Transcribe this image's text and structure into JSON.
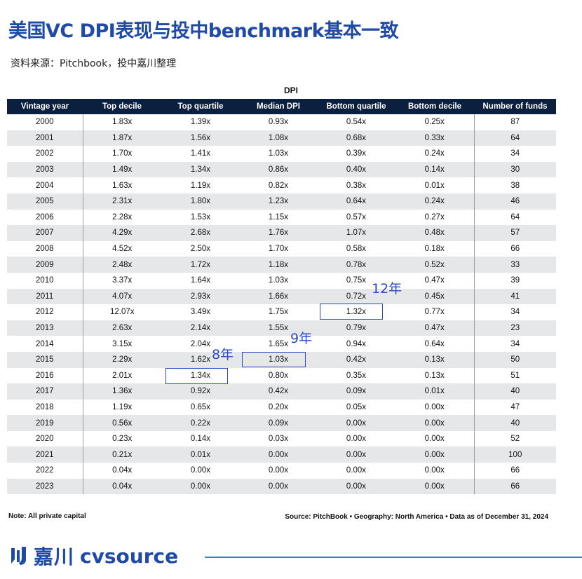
{
  "title": "美国VC DPI表现与投中benchmark基本一致",
  "subtitle": "资料来源：Pitchbook，投中嘉川整理",
  "dpi_label": "DPI",
  "table": {
    "headers": [
      "Vintage year",
      "Top decile",
      "Top quartile",
      "Median DPI",
      "Bottom quartile",
      "Bottom decile",
      "Number of funds"
    ],
    "rows": [
      [
        "2000",
        "1.83x",
        "1.39x",
        "0.93x",
        "0.54x",
        "0.25x",
        "87"
      ],
      [
        "2001",
        "1.87x",
        "1.56x",
        "1.08x",
        "0.68x",
        "0.33x",
        "64"
      ],
      [
        "2002",
        "1.70x",
        "1.41x",
        "1.03x",
        "0.39x",
        "0.24x",
        "34"
      ],
      [
        "2003",
        "1.49x",
        "1.34x",
        "0.86x",
        "0.40x",
        "0.14x",
        "30"
      ],
      [
        "2004",
        "1.63x",
        "1.19x",
        "0.82x",
        "0.38x",
        "0.01x",
        "38"
      ],
      [
        "2005",
        "2.31x",
        "1.80x",
        "1.23x",
        "0.64x",
        "0.24x",
        "46"
      ],
      [
        "2006",
        "2.28x",
        "1.53x",
        "1.15x",
        "0.57x",
        "0.27x",
        "64"
      ],
      [
        "2007",
        "4.29x",
        "2.68x",
        "1.76x",
        "1.07x",
        "0.48x",
        "57"
      ],
      [
        "2008",
        "4.52x",
        "2.50x",
        "1.70x",
        "0.58x",
        "0.18x",
        "66"
      ],
      [
        "2009",
        "2.48x",
        "1.72x",
        "1.18x",
        "0.78x",
        "0.52x",
        "33"
      ],
      [
        "2010",
        "3.37x",
        "1.64x",
        "1.03x",
        "0.75x",
        "0.47x",
        "39"
      ],
      [
        "2011",
        "4.07x",
        "2.93x",
        "1.66x",
        "0.72x",
        "0.45x",
        "41"
      ],
      [
        "2012",
        "12.07x",
        "3.49x",
        "1.75x",
        "1.32x",
        "0.77x",
        "34"
      ],
      [
        "2013",
        "2.63x",
        "2.14x",
        "1.55x",
        "0.79x",
        "0.47x",
        "23"
      ],
      [
        "2014",
        "3.15x",
        "2.04x",
        "1.65x",
        "0.94x",
        "0.64x",
        "34"
      ],
      [
        "2015",
        "2.29x",
        "1.62x",
        "1.03x",
        "0.42x",
        "0.13x",
        "50"
      ],
      [
        "2016",
        "2.01x",
        "1.34x",
        "0.80x",
        "0.35x",
        "0.13x",
        "51"
      ],
      [
        "2017",
        "1.36x",
        "0.92x",
        "0.42x",
        "0.09x",
        "0.01x",
        "40"
      ],
      [
        "2018",
        "1.19x",
        "0.65x",
        "0.20x",
        "0.05x",
        "0.00x",
        "47"
      ],
      [
        "2019",
        "0.56x",
        "0.22x",
        "0.09x",
        "0.00x",
        "0.00x",
        "40"
      ],
      [
        "2020",
        "0.23x",
        "0.14x",
        "0.03x",
        "0.00x",
        "0.00x",
        "52"
      ],
      [
        "2021",
        "0.21x",
        "0.01x",
        "0.00x",
        "0.00x",
        "0.00x",
        "100"
      ],
      [
        "2022",
        "0.04x",
        "0.00x",
        "0.00x",
        "0.00x",
        "0.00x",
        "66"
      ],
      [
        "2023",
        "0.04x",
        "0.00x",
        "0.00x",
        "0.00x",
        "0.00x",
        "66"
      ]
    ]
  },
  "annotations": {
    "a12": "12年",
    "a9": "9年",
    "a8": "8年"
  },
  "note": "Note: All private capital",
  "source": "Source: PitchBook • Geography: North America • Data as of December 31, 2024",
  "logo": {
    "cn": "嘉川",
    "en": "cvsource"
  },
  "colors": {
    "brand_blue": "#1f4aa8",
    "header_navy": "#0b1f3f",
    "annotation_blue": "#2a4bc0",
    "row_shade": "#e6e7e8"
  }
}
